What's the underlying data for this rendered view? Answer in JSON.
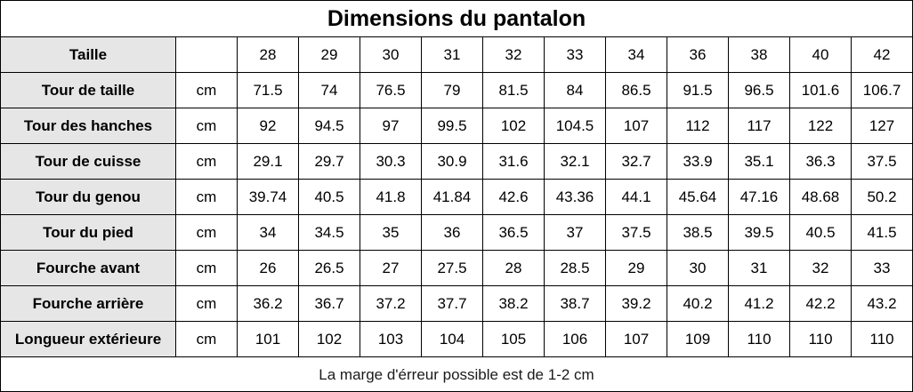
{
  "title": "Dimensions du pantalon",
  "header": {
    "label": "Taille",
    "unit": "",
    "sizes": [
      "28",
      "29",
      "30",
      "31",
      "32",
      "33",
      "34",
      "36",
      "38",
      "40",
      "42"
    ]
  },
  "rows": [
    {
      "label": "Tour de taille",
      "unit": "cm",
      "values": [
        "71.5",
        "74",
        "76.5",
        "79",
        "81.5",
        "84",
        "86.5",
        "91.5",
        "96.5",
        "101.6",
        "106.7"
      ]
    },
    {
      "label": "Tour des hanches",
      "unit": "cm",
      "values": [
        "92",
        "94.5",
        "97",
        "99.5",
        "102",
        "104.5",
        "107",
        "112",
        "117",
        "122",
        "127"
      ]
    },
    {
      "label": "Tour de cuisse",
      "unit": "cm",
      "values": [
        "29.1",
        "29.7",
        "30.3",
        "30.9",
        "31.6",
        "32.1",
        "32.7",
        "33.9",
        "35.1",
        "36.3",
        "37.5"
      ]
    },
    {
      "label": "Tour du genou",
      "unit": "cm",
      "values": [
        "39.74",
        "40.5",
        "41.8",
        "41.84",
        "42.6",
        "43.36",
        "44.1",
        "45.64",
        "47.16",
        "48.68",
        "50.2"
      ]
    },
    {
      "label": "Tour du pied",
      "unit": "cm",
      "values": [
        "34",
        "34.5",
        "35",
        "36",
        "36.5",
        "37",
        "37.5",
        "38.5",
        "39.5",
        "40.5",
        "41.5"
      ]
    },
    {
      "label": "Fourche avant",
      "unit": "cm",
      "values": [
        "26",
        "26.5",
        "27",
        "27.5",
        "28",
        "28.5",
        "29",
        "30",
        "31",
        "32",
        "33"
      ]
    },
    {
      "label": "Fourche arrière",
      "unit": "cm",
      "values": [
        "36.2",
        "36.7",
        "37.2",
        "37.7",
        "38.2",
        "38.7",
        "39.2",
        "40.2",
        "41.2",
        "42.2",
        "43.2"
      ]
    },
    {
      "label": "Longueur extérieure",
      "unit": "cm",
      "values": [
        "101",
        "102",
        "103",
        "104",
        "105",
        "106",
        "107",
        "109",
        "110",
        "110",
        "110"
      ]
    }
  ],
  "note": "La marge d'érreur possible est de 1-2 cm",
  "colors": {
    "label_background": "#e6e6e6",
    "border": "#000000"
  }
}
